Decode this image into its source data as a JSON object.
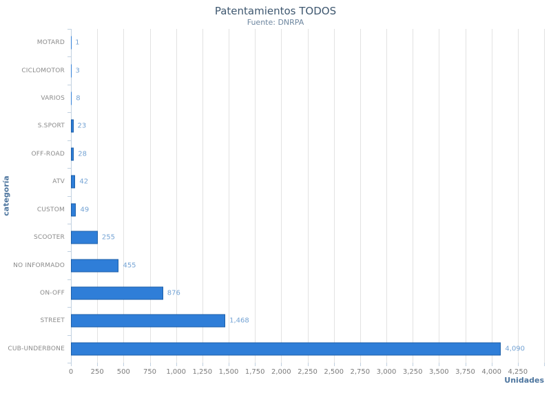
{
  "chart_data": {
    "type": "bar",
    "orientation": "horizontal",
    "title": "Patentamientos TODOS",
    "subtitle": "Fuente: DNRPA",
    "xlabel": "Unidades",
    "ylabel": "categoría",
    "categories": [
      "MOTARD",
      "CICLOMOTOR",
      "VARIOS",
      "S.SPORT",
      "OFF-ROAD",
      "ATV",
      "CUSTOM",
      "SCOOTER",
      "NO INFORMADO",
      "ON-OFF",
      "STREET",
      "CUB-UNDERBONE"
    ],
    "values": [
      1,
      3,
      8,
      23,
      28,
      42,
      49,
      255,
      455,
      876,
      1468,
      4090
    ],
    "value_labels": [
      "1",
      "3",
      "8",
      "23",
      "28",
      "42",
      "49",
      "255",
      "455",
      "876",
      "1,468",
      "4,090"
    ],
    "xlim": [
      0,
      4500
    ],
    "x_tick_interval": 250,
    "x_tick_labels": [
      "0",
      "250",
      "500",
      "750",
      "1,000",
      "1,250",
      "1,500",
      "1,750",
      "2,000",
      "2,250",
      "2,500",
      "2,750",
      "3,000",
      "3,250",
      "3,500",
      "3,750",
      "4,000",
      "4,250"
    ],
    "grid": true,
    "legend": "none",
    "colors": {
      "bar_fill": "#2f7ed8",
      "bar_border": "#1c5fa8",
      "value_label": "#74a3d4",
      "grid_line": "#e2e2e2",
      "axis_line": "#c0d0e0",
      "tick_label": "#7a7a7a",
      "category_label": "#8a8a8a",
      "title": "#3e576f",
      "subtitle": "#6d869f",
      "axis_title": "#4d759e",
      "background": "#ffffff"
    }
  }
}
